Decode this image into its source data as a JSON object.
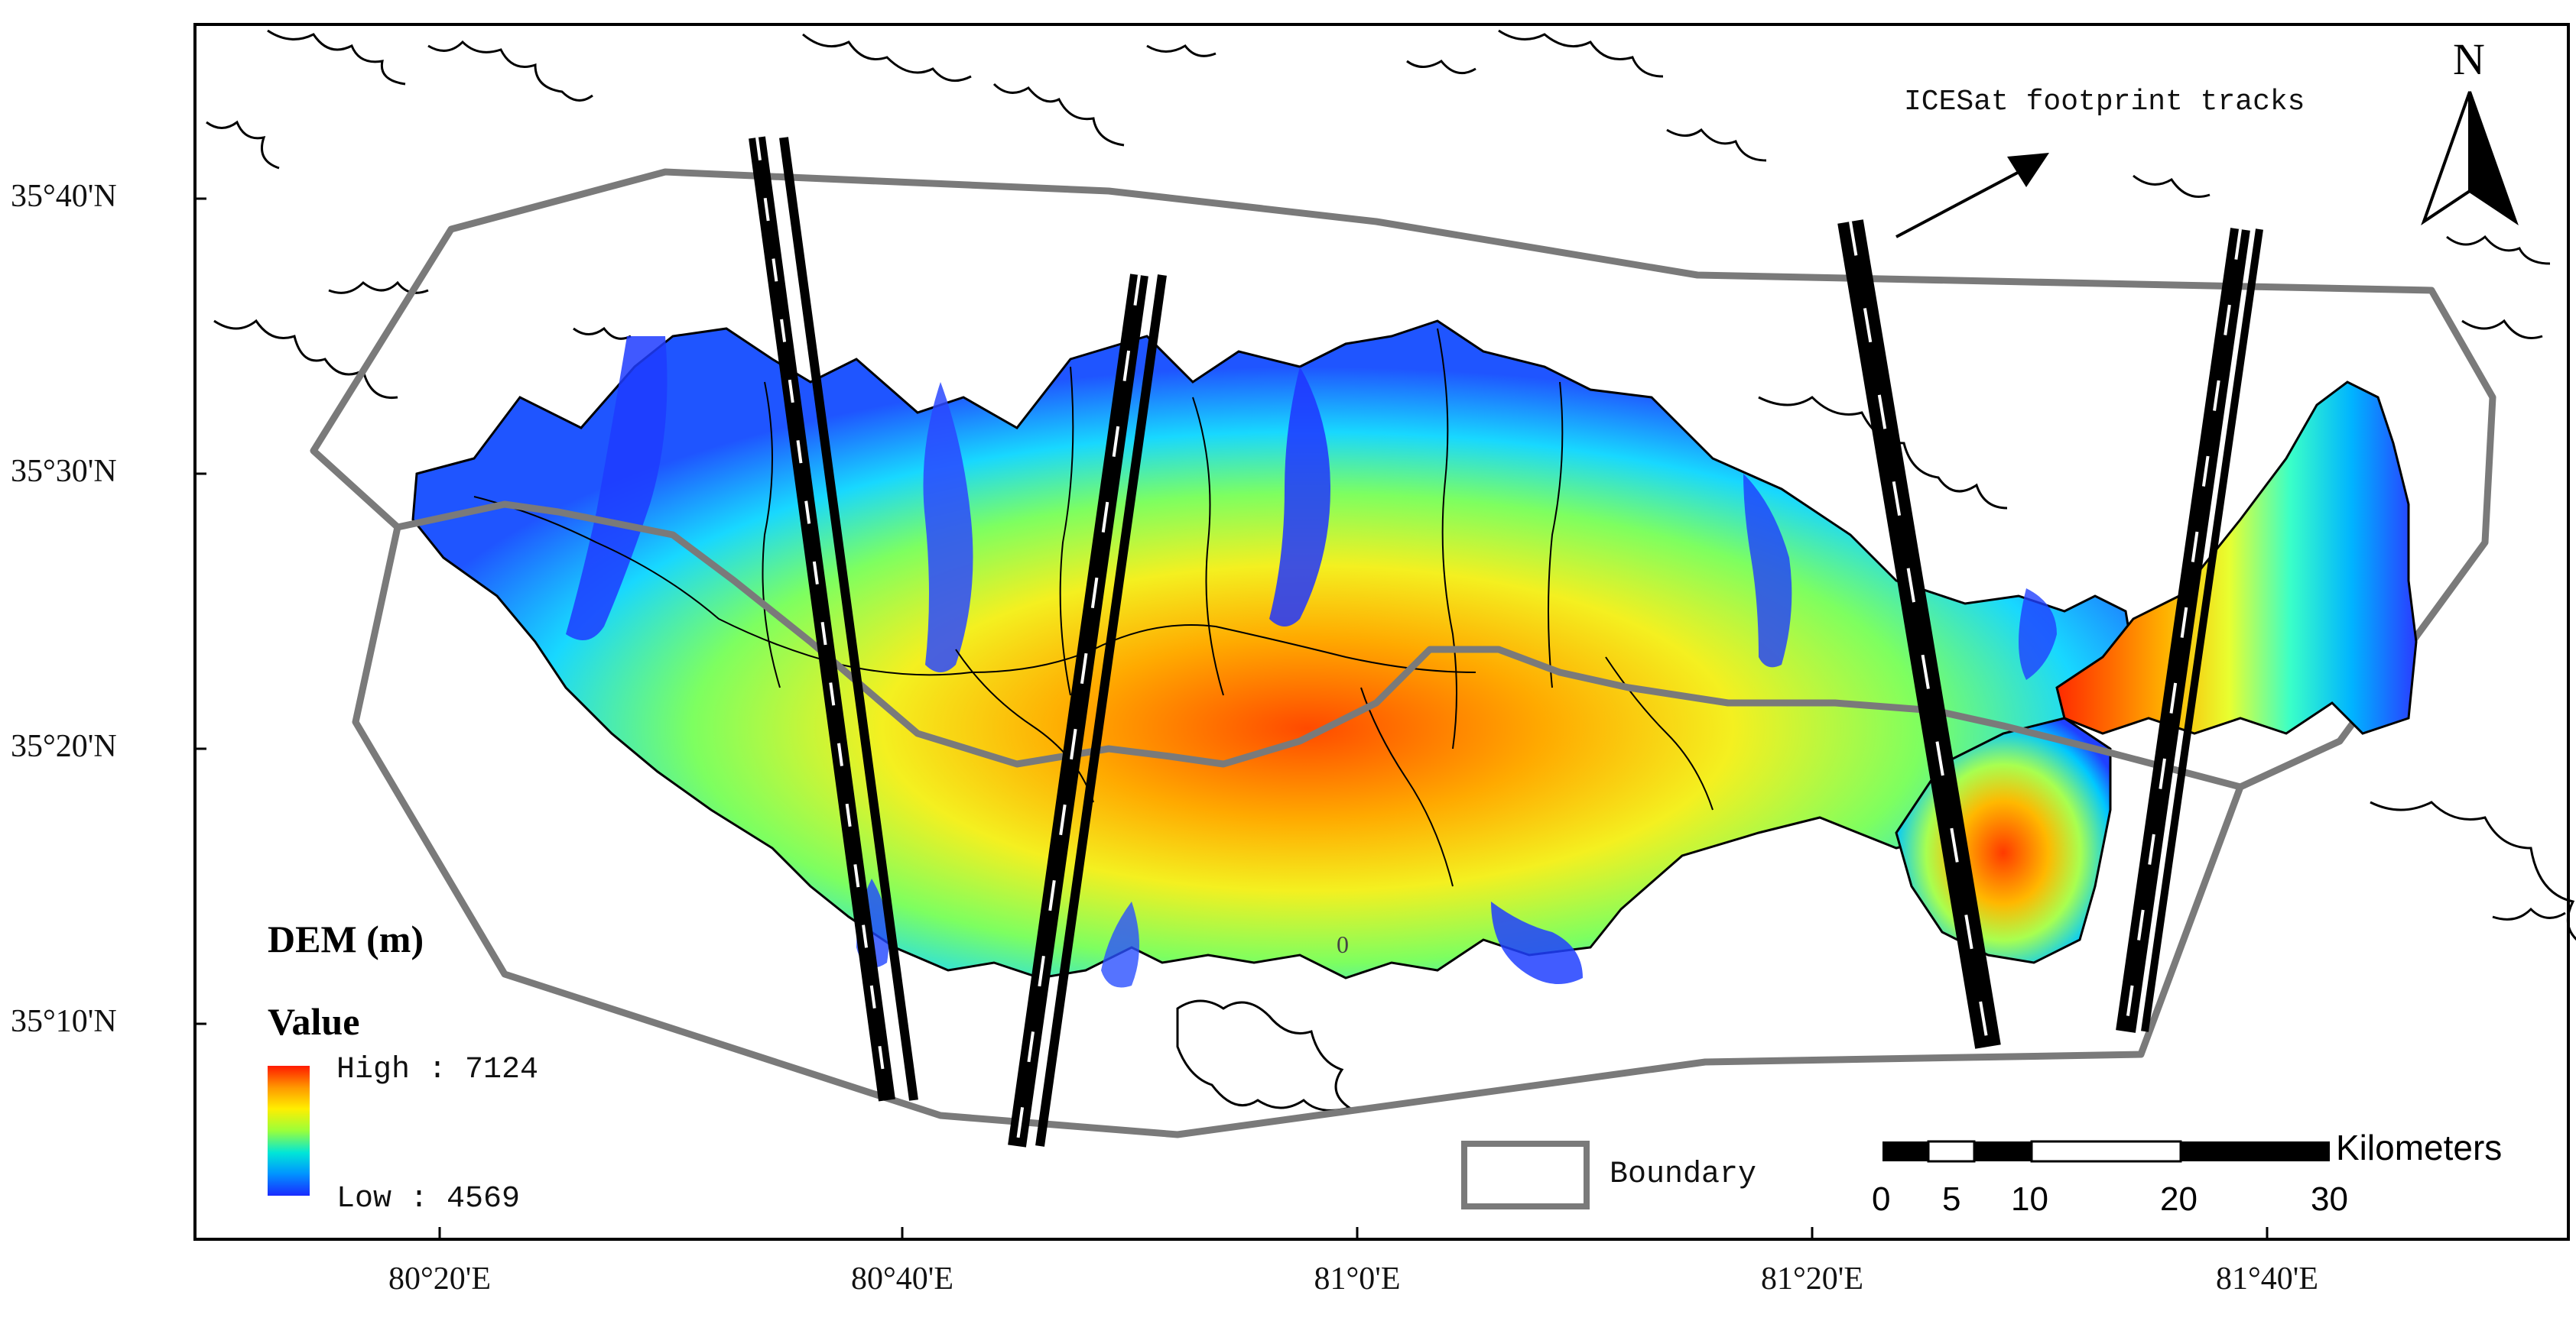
{
  "graticule": {
    "latitude_labels": [
      "35°40'N",
      "35°30'N",
      "35°20'N",
      "35°10'N"
    ],
    "longitude_labels": [
      "80°20'E",
      "80°40'E",
      "81°0'E",
      "81°20'E",
      "81°40'E"
    ]
  },
  "annotation": {
    "tracks_label": "ICESat footprint tracks"
  },
  "north_arrow": {
    "label": "N"
  },
  "legend": {
    "title": "DEM (m)",
    "value_heading": "Value",
    "high_label": "High : 7124",
    "low_label": "Low : 4569",
    "ramp_colors": [
      "#ff1a00",
      "#ff9a00",
      "#ffee00",
      "#9aff3a",
      "#00e6d8",
      "#0095ff",
      "#1a2aff"
    ],
    "boundary_label": "Boundary",
    "boundary_color": "#7a7a7a"
  },
  "scale_bar": {
    "unit": "Kilometers",
    "ticks": [
      "0",
      "5",
      "10",
      "20",
      "30"
    ]
  },
  "map_marks": {
    "contour_zero": "0"
  }
}
